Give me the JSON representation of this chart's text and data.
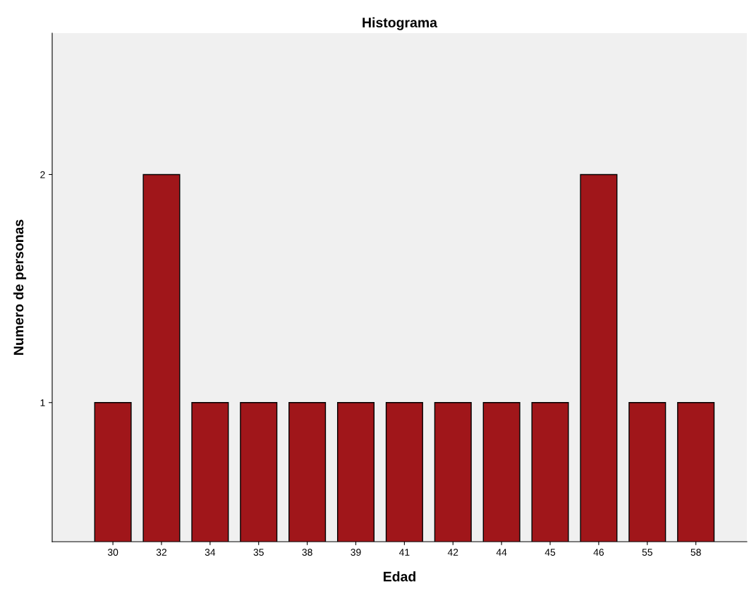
{
  "chart_data": {
    "type": "bar",
    "title": "Histograma",
    "xlabel": "Edad",
    "ylabel": "Numero de personas",
    "categories": [
      "30",
      "32",
      "34",
      "35",
      "38",
      "39",
      "41",
      "42",
      "44",
      "45",
      "46",
      "55",
      "58"
    ],
    "values": [
      1,
      2,
      1,
      1,
      1,
      1,
      1,
      1,
      1,
      1,
      2,
      1,
      1
    ],
    "color": "#a0161a",
    "ylim": [
      0.39,
      2.62
    ],
    "yticks": [
      1,
      2
    ],
    "grid": false,
    "legend": false
  }
}
